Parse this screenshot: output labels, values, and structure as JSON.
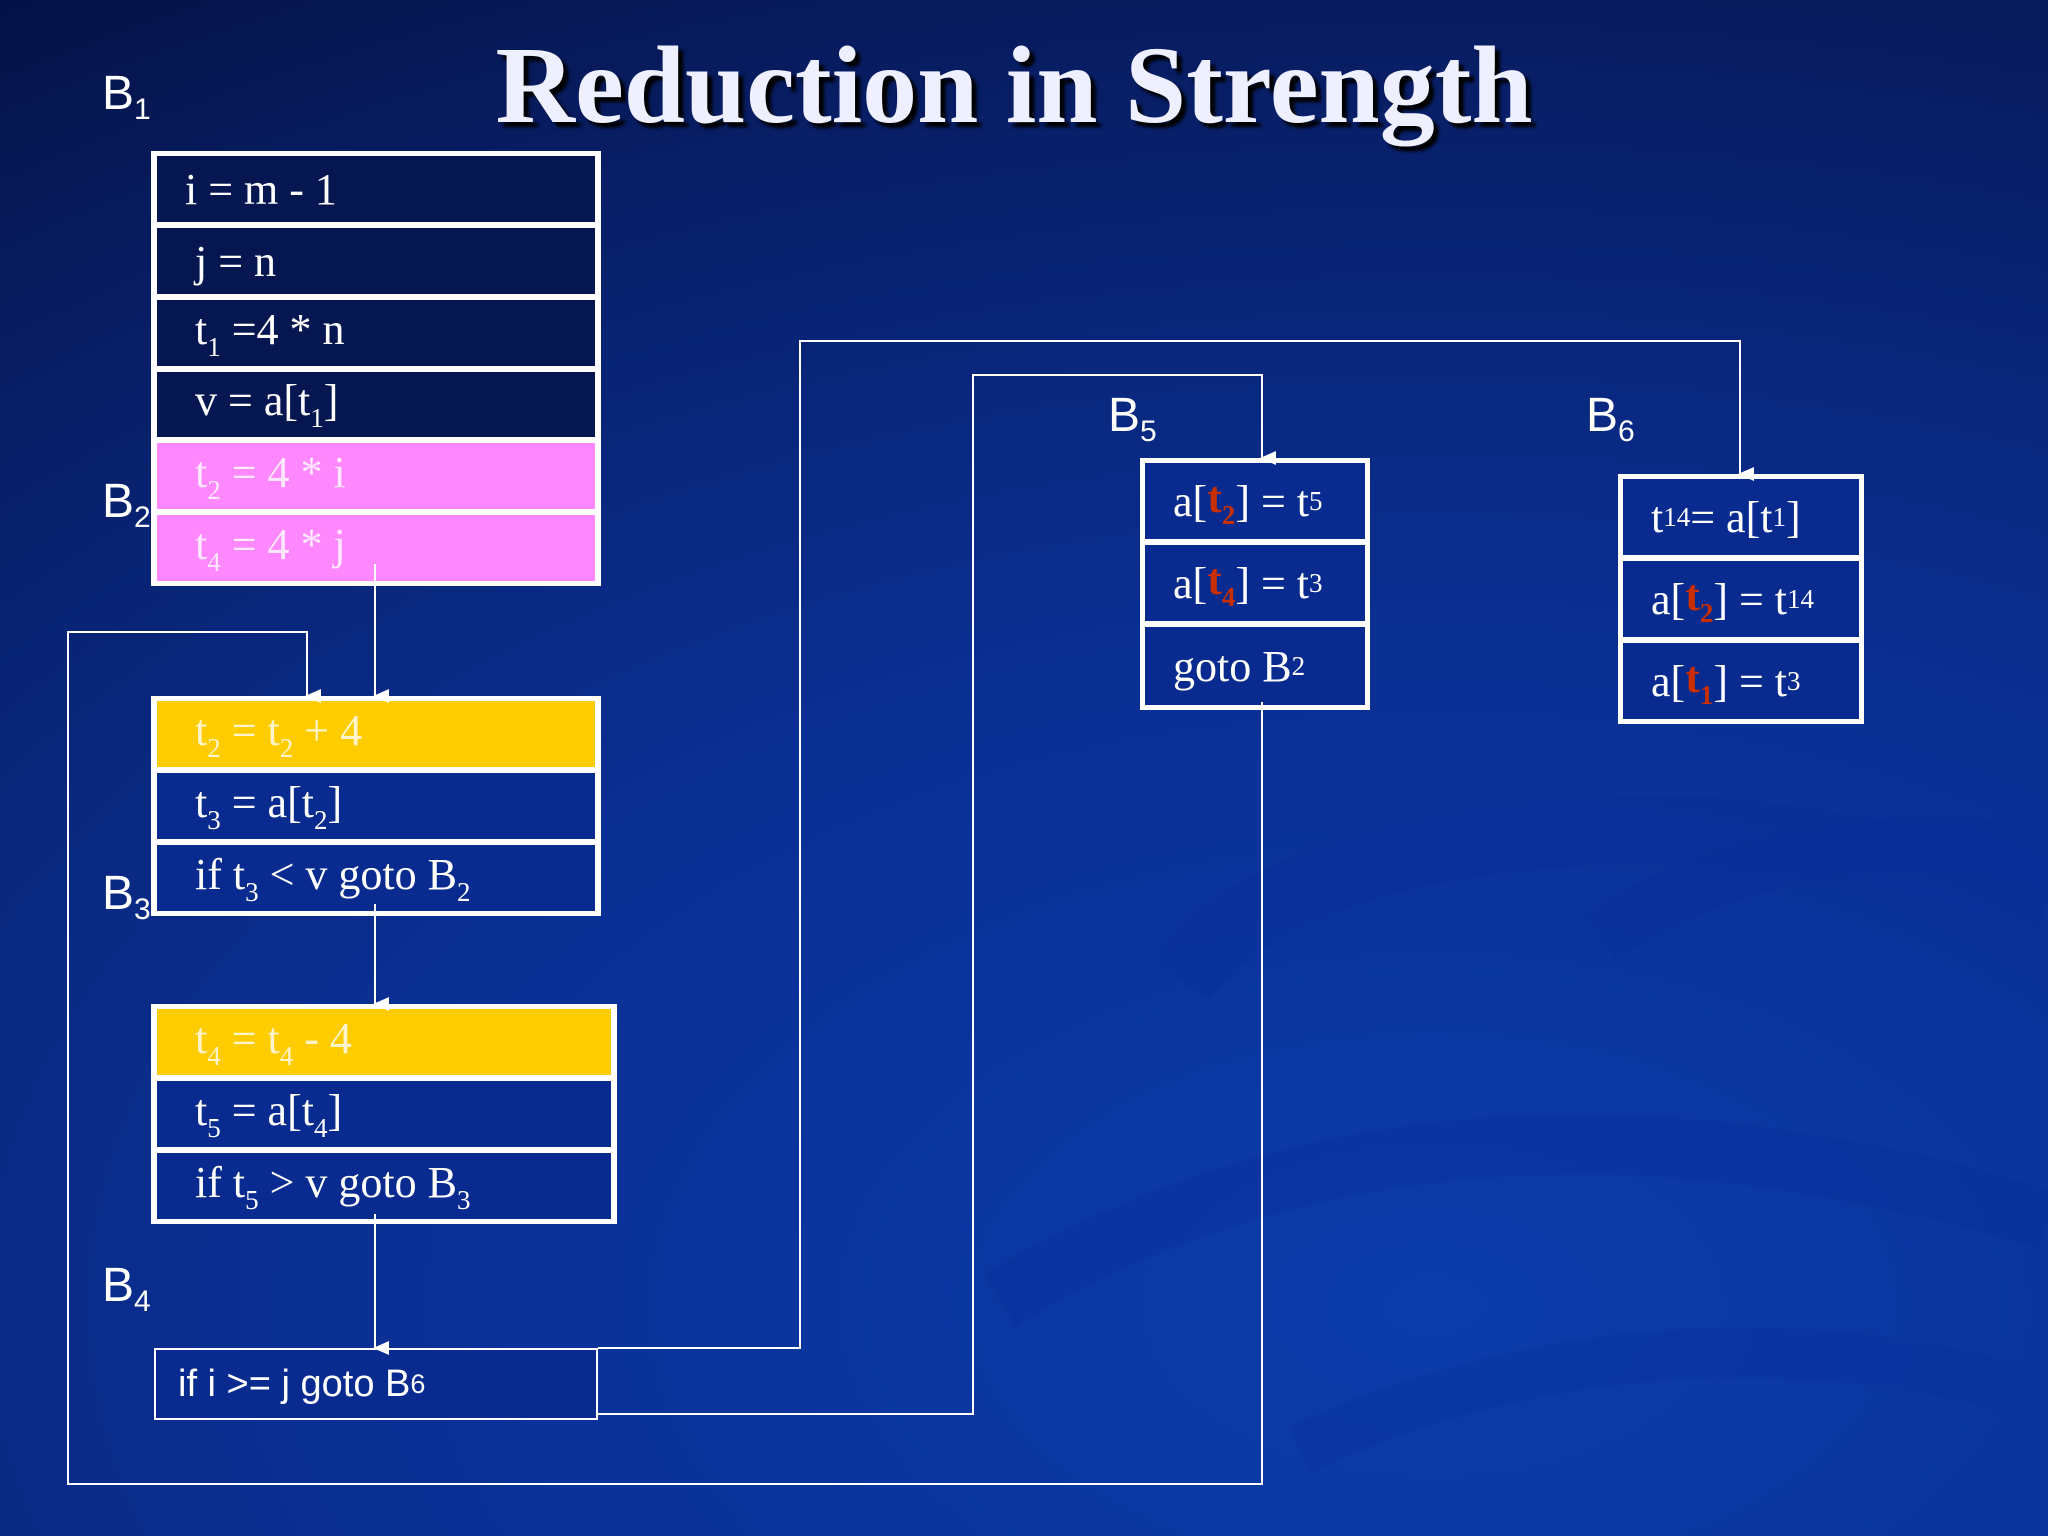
{
  "title": "Reduction in Strength",
  "blocks": {
    "b1": {
      "label": "B",
      "sub": "1"
    },
    "b2": {
      "label": "B",
      "sub": "2"
    },
    "b3": {
      "label": "B",
      "sub": "3"
    },
    "b4": {
      "label": "B",
      "sub": "4"
    },
    "b5": {
      "label": "B",
      "sub": "5"
    },
    "b6": {
      "label": "B",
      "sub": "6"
    }
  },
  "b1_stmts": {
    "s1": "i = m - 1",
    "s2": "j = n",
    "s3": {
      "t": "t",
      "sub": "1",
      "rest": " =4 *  n"
    },
    "s4": {
      "pre": "v = a[t",
      "sub": "1",
      "post": "]"
    },
    "s5": {
      "t": "t",
      "sub": "2",
      "rest": " = 4 *  i"
    },
    "s6": {
      "t": "t",
      "sub": "4",
      "rest": " = 4 * j"
    }
  },
  "b2_stmts": {
    "s1": {
      "a": "t",
      "asub": "2",
      "mid": " = t",
      "bsub": "2",
      "post": " + 4"
    },
    "s2": {
      "a": "t",
      "asub": "3",
      "mid": " = a[t",
      "bsub": "2",
      "post": "]"
    },
    "s3": {
      "pre": "if t",
      "asub": "3",
      "mid": " < v goto B",
      "bsub": "2"
    }
  },
  "b3_stmts": {
    "s1": {
      "a": "t",
      "asub": "4",
      "mid": " = t",
      "bsub": "4",
      "post": " - 4"
    },
    "s2": {
      "a": "t",
      "asub": "5",
      "mid": " = a[t",
      "bsub": "4",
      "post": "]"
    },
    "s3": {
      "pre": "if t",
      "asub": "5",
      "mid": " > v goto B",
      "bsub": "3"
    }
  },
  "b4_stmt": {
    "pre": "if i >= j goto B",
    "sub": "6"
  },
  "b5_stmts": {
    "s1": {
      "pre": "a[",
      "rt": "t",
      "rsub": "2",
      "mid": "] = t",
      "sub": "5"
    },
    "s2": {
      "pre": "a[",
      "rt": "t",
      "rsub": "4",
      "mid": "] = t",
      "sub": "3"
    },
    "s3": {
      "pre": "goto B",
      "sub": "2"
    }
  },
  "b6_stmts": {
    "s1": {
      "a": "t",
      "asub": "14",
      "mid": " = a[t",
      "bsub": "1",
      "post": "]"
    },
    "s2": {
      "pre": "a[",
      "rt": "t",
      "rsub": "2",
      "mid": "] = t",
      "sub": "14"
    },
    "s3": {
      "pre": "a[",
      "rt": "t",
      "rsub": "1",
      "mid": "] = t",
      "sub": "3"
    }
  },
  "colors": {
    "highlight_pink": "#ff88ff",
    "highlight_gold": "#ffcc00",
    "highlight_red": "#c82e00"
  }
}
